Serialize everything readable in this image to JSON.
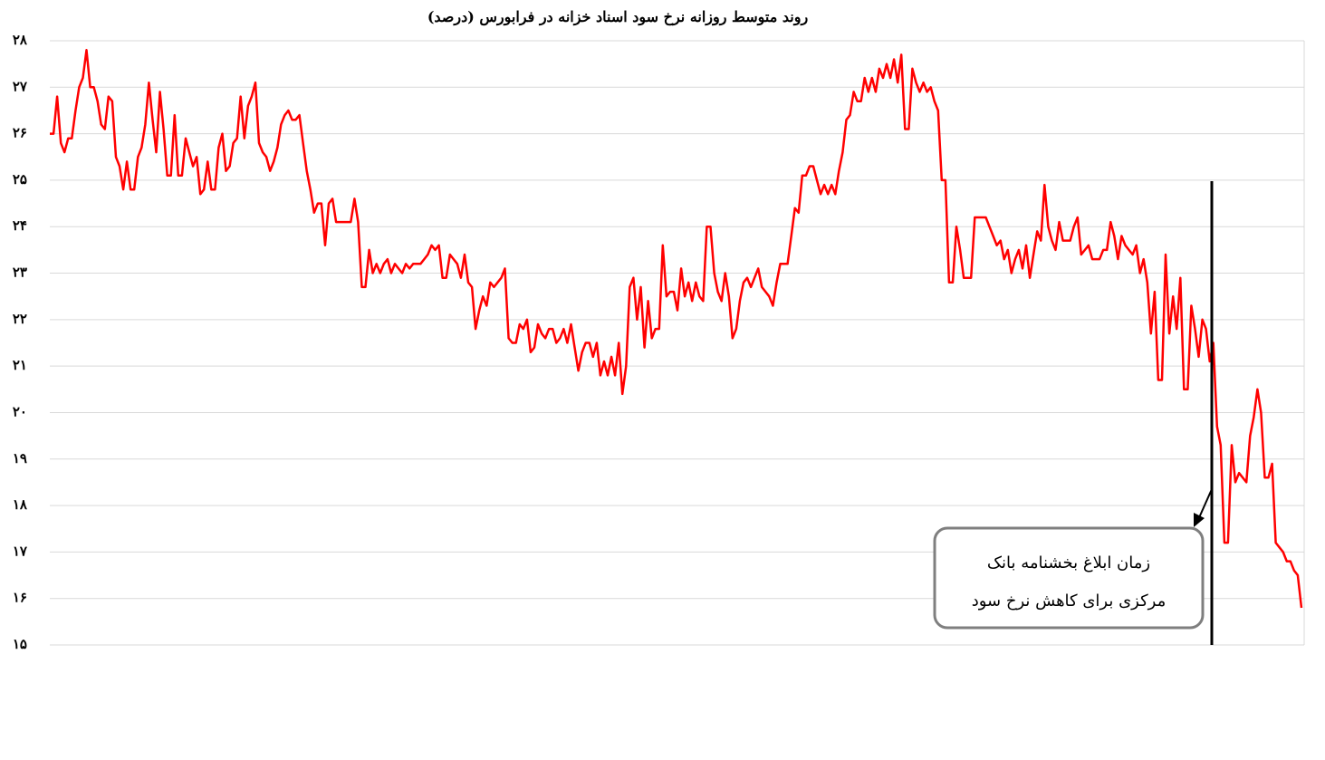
{
  "chart_data": {
    "type": "line",
    "title": "روند متوسط روزانه نرخ سود اسناد خزانه در فرابورس (درصد)",
    "annotation": [
      "زمان ابلاغ بخشنامه بانک",
      "مرکزی برای کاهش نرخ سود"
    ],
    "ylim": [
      15,
      28
    ],
    "yticks": [
      {
        "value": 15,
        "label": "۱۵"
      },
      {
        "value": 16,
        "label": "۱۶"
      },
      {
        "value": 17,
        "label": "۱۷"
      },
      {
        "value": 18,
        "label": "۱۸"
      },
      {
        "value": 19,
        "label": "۱۹"
      },
      {
        "value": 20,
        "label": "۲۰"
      },
      {
        "value": 21,
        "label": "۲۱"
      },
      {
        "value": 22,
        "label": "۲۲"
      },
      {
        "value": 23,
        "label": "۲۳"
      },
      {
        "value": 24,
        "label": "۲۴"
      },
      {
        "value": 25,
        "label": "۲۵"
      },
      {
        "value": 26,
        "label": "۲۶"
      },
      {
        "value": 27,
        "label": "۲۷"
      },
      {
        "value": 28,
        "label": "۲۸"
      }
    ],
    "grid": true,
    "series": [
      {
        "color": "#ff0000",
        "values": [
          26.0,
          26.0,
          26.8,
          25.8,
          25.6,
          25.9,
          25.9,
          26.5,
          27.0,
          27.2,
          27.8,
          27.0,
          27.0,
          26.7,
          26.2,
          26.1,
          26.8,
          26.7,
          25.5,
          25.3,
          24.8,
          25.4,
          24.8,
          24.8,
          25.5,
          25.7,
          26.2,
          27.1,
          26.3,
          25.6,
          26.9,
          26.1,
          25.1,
          25.1,
          26.4,
          25.1,
          25.1,
          25.9,
          25.6,
          25.3,
          25.5,
          24.7,
          24.8,
          25.4,
          24.8,
          24.8,
          25.7,
          26.0,
          25.2,
          25.3,
          25.8,
          25.9,
          26.8,
          25.9,
          26.6,
          26.8,
          27.1,
          25.8,
          25.6,
          25.5,
          25.2,
          25.4,
          25.7,
          26.2,
          26.4,
          26.5,
          26.3,
          26.3,
          26.4,
          25.8,
          25.2,
          24.8,
          24.3,
          24.5,
          24.5,
          23.6,
          24.5,
          24.6,
          24.1,
          24.1,
          24.1,
          24.1,
          24.1,
          24.6,
          24.1,
          22.7,
          22.7,
          23.5,
          23.0,
          23.2,
          23.0,
          23.2,
          23.3,
          23.0,
          23.2,
          23.1,
          23.0,
          23.2,
          23.1,
          23.2,
          23.2,
          23.2,
          23.3,
          23.4,
          23.6,
          23.5,
          23.6,
          22.9,
          22.9,
          23.4,
          23.3,
          23.2,
          22.9,
          23.4,
          22.8,
          22.7,
          21.8,
          22.2,
          22.5,
          22.3,
          22.8,
          22.7,
          22.8,
          22.9,
          23.1,
          21.6,
          21.5,
          21.5,
          21.9,
          21.8,
          22.0,
          21.3,
          21.4,
          21.9,
          21.7,
          21.6,
          21.8,
          21.8,
          21.5,
          21.6,
          21.8,
          21.5,
          21.9,
          21.4,
          20.9,
          21.3,
          21.5,
          21.5,
          21.2,
          21.5,
          20.8,
          21.1,
          20.8,
          21.2,
          20.8,
          21.5,
          20.4,
          21.0,
          22.7,
          22.9,
          22.0,
          22.7,
          21.4,
          22.4,
          21.6,
          21.8,
          21.8,
          23.6,
          22.5,
          22.6,
          22.6,
          22.2,
          23.1,
          22.5,
          22.8,
          22.4,
          22.8,
          22.5,
          22.4,
          24.0,
          24.0,
          23.0,
          22.6,
          22.4,
          23.0,
          22.5,
          21.6,
          21.8,
          22.4,
          22.8,
          22.9,
          22.7,
          22.9,
          23.1,
          22.7,
          22.6,
          22.5,
          22.3,
          22.8,
          23.2,
          23.2,
          23.2,
          23.8,
          24.4,
          24.3,
          25.1,
          25.1,
          25.3,
          25.3,
          25.0,
          24.7,
          24.9,
          24.7,
          24.9,
          24.7,
          25.2,
          25.6,
          26.3,
          26.4,
          26.9,
          26.7,
          26.7,
          27.2,
          26.9,
          27.2,
          26.9,
          27.4,
          27.2,
          27.5,
          27.2,
          27.6,
          27.1,
          27.7,
          26.1,
          26.1,
          27.4,
          27.1,
          26.9,
          27.1,
          26.9,
          27.0,
          26.7,
          26.5,
          25.0,
          25.0,
          22.8,
          22.8,
          24.0,
          23.5,
          22.9,
          22.9,
          22.9,
          24.2,
          24.2,
          24.2,
          24.2,
          24.0,
          23.8,
          23.6,
          23.7,
          23.3,
          23.5,
          23.0,
          23.3,
          23.5,
          23.1,
          23.6,
          22.9,
          23.4,
          23.9,
          23.7,
          24.9,
          24.0,
          23.7,
          23.5,
          24.1,
          23.7,
          23.7,
          23.7,
          24.0,
          24.2,
          23.4,
          23.5,
          23.6,
          23.3,
          23.3,
          23.3,
          23.5,
          23.5,
          24.1,
          23.8,
          23.3,
          23.8,
          23.6,
          23.5,
          23.4,
          23.6,
          23.0,
          23.3,
          22.8,
          21.7,
          22.6,
          20.7,
          20.7,
          23.4,
          21.7,
          22.5,
          21.8,
          22.9,
          20.5,
          20.5,
          22.3,
          21.8,
          21.2,
          22.0,
          21.8,
          21.1,
          21.5,
          19.7,
          19.3,
          17.2,
          17.2,
          19.3,
          18.5,
          18.7,
          18.6,
          18.5,
          19.5,
          19.9,
          20.5,
          20.0,
          18.6,
          18.6,
          18.9,
          17.2,
          17.1,
          17.0,
          16.8,
          16.8,
          16.6,
          16.5,
          15.8
        ]
      }
    ]
  }
}
